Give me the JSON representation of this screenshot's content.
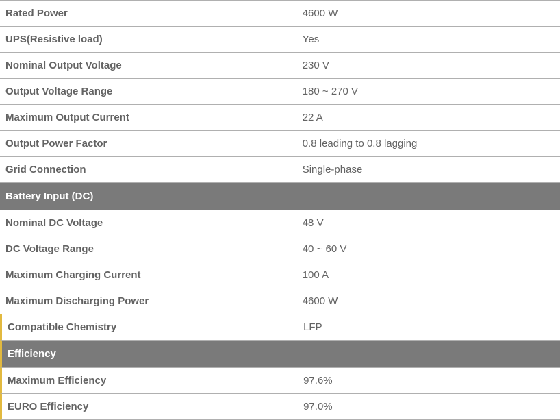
{
  "colors": {
    "header_bg": "#7a7a7a",
    "header_text": "#ffffff",
    "label_text": "#636363",
    "value_text": "#636363",
    "row_border": "#b0b0b0",
    "accent": "#e2b93f",
    "background": "#ffffff"
  },
  "typography": {
    "font_family": "Arial, Helvetica, sans-serif",
    "label_fontsize": 15,
    "value_fontsize": 15,
    "label_weight": 700,
    "value_weight": 400
  },
  "sections": [
    {
      "header": null,
      "rows": [
        {
          "label": "Rated Power",
          "value": "4600 W"
        },
        {
          "label": "UPS(Resistive load)",
          "value": "Yes"
        },
        {
          "label": "Nominal Output Voltage",
          "value": "230 V"
        },
        {
          "label": "Output Voltage Range",
          "value": "180 ~ 270 V"
        },
        {
          "label": "Maximum Output Current",
          "value": "22 A"
        },
        {
          "label": "Output Power Factor",
          "value": "0.8 leading to 0.8 lagging"
        },
        {
          "label": "Grid Connection",
          "value": "Single-phase"
        }
      ]
    },
    {
      "header": "Battery Input (DC)",
      "rows": [
        {
          "label": "Nominal DC Voltage",
          "value": "48 V"
        },
        {
          "label": "DC Voltage Range",
          "value": "40 ~ 60 V"
        },
        {
          "label": "Maximum Charging Current",
          "value": "100 A"
        },
        {
          "label": "Maximum Discharging Power",
          "value": "4600 W"
        },
        {
          "label": "Compatible Chemistry",
          "value": "LFP",
          "accent": true
        }
      ]
    },
    {
      "header": "Efficiency",
      "header_accent": true,
      "rows": [
        {
          "label": "Maximum Efficiency",
          "value": "97.6%",
          "accent": true
        },
        {
          "label": "EURO Efficiency",
          "value": "97.0%",
          "accent": true
        }
      ]
    }
  ]
}
